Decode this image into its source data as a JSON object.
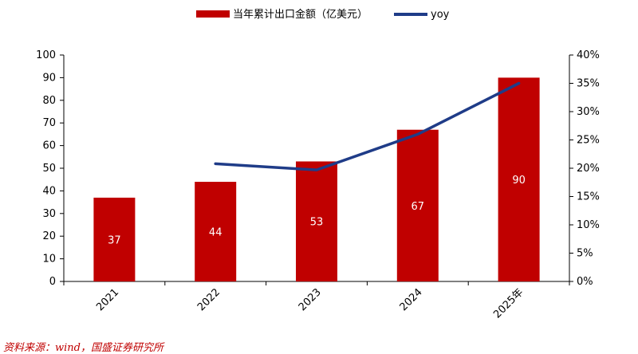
{
  "chart_data": {
    "type": "bar",
    "categories": [
      "2021",
      "2022",
      "2023",
      "2024",
      "2025年"
    ],
    "series": [
      {
        "name": "当年累计出口金额（亿美元）",
        "type": "bar",
        "axis": "left",
        "values": [
          37,
          44,
          53,
          67,
          90
        ],
        "labels": [
          "37",
          "44",
          "53",
          "67",
          "90"
        ]
      },
      {
        "name": "yoy",
        "type": "line",
        "axis": "right",
        "values": [
          null,
          0.208,
          0.197,
          0.26,
          0.35
        ]
      }
    ],
    "left_axis": {
      "min": 0,
      "max": 100,
      "ticks": [
        "0",
        "10",
        "20",
        "30",
        "40",
        "50",
        "60",
        "70",
        "80",
        "90",
        "100"
      ]
    },
    "right_axis": {
      "min": 0,
      "max": 0.4,
      "ticks": [
        "0%",
        "5%",
        "10%",
        "15%",
        "20%",
        "25%",
        "30%",
        "35%",
        "40%"
      ]
    },
    "grid": false,
    "legend_position": "top",
    "colors": {
      "bar": "#c00000",
      "line": "#1f3c88"
    }
  },
  "source": "资料来源：wind，国盛证券研究所"
}
